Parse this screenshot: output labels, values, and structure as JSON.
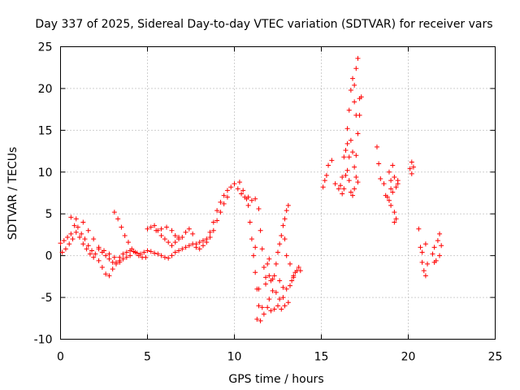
{
  "chart_data": {
    "type": "scatter",
    "title": "Day 337 of 2025, Sidereal Day-to-day VTEC variation (SDTVAR) for receiver vars",
    "xlabel": "GPS time / hours",
    "ylabel": "SDTVAR / TECUs",
    "xlim": [
      0,
      25
    ],
    "ylim": [
      -10,
      25
    ],
    "xticks": [
      0,
      5,
      10,
      15,
      20,
      25
    ],
    "yticks": [
      -10,
      -5,
      0,
      5,
      10,
      15,
      20,
      25
    ],
    "xtick_labels": [
      "0",
      "5",
      "10",
      "15",
      "20",
      "25"
    ],
    "ytick_labels": [
      "-10",
      "-5",
      "0",
      "5",
      "10",
      "15",
      "20",
      "25"
    ],
    "grid": true,
    "marker": "+",
    "series": [
      {
        "name": "SDTVAR",
        "color": "#ff0000",
        "points": [
          [
            0.0,
            1.5
          ],
          [
            0.2,
            1.8
          ],
          [
            0.4,
            2.2
          ],
          [
            0.6,
            2.6
          ],
          [
            0.8,
            3.6
          ],
          [
            1.0,
            3.4
          ],
          [
            1.2,
            2.6
          ],
          [
            1.4,
            2.0
          ],
          [
            1.6,
            1.2
          ],
          [
            1.8,
            0.6
          ],
          [
            2.0,
            0.2
          ],
          [
            2.2,
            -0.6
          ],
          [
            2.4,
            -1.4
          ],
          [
            2.6,
            -2.2
          ],
          [
            2.8,
            -2.4
          ],
          [
            3.0,
            -1.6
          ],
          [
            3.2,
            -0.8
          ],
          [
            3.4,
            -0.2
          ],
          [
            3.6,
            0.2
          ],
          [
            3.8,
            0.4
          ],
          [
            4.0,
            0.6
          ],
          [
            4.2,
            0.5
          ],
          [
            4.4,
            0.3
          ],
          [
            4.6,
            0.2
          ],
          [
            4.8,
            0.4
          ],
          [
            5.0,
            0.6
          ],
          [
            5.2,
            0.5
          ],
          [
            5.4,
            0.3
          ],
          [
            5.6,
            0.2
          ],
          [
            5.8,
            0.0
          ],
          [
            6.0,
            -0.2
          ],
          [
            6.2,
            -0.3
          ],
          [
            6.4,
            0.0
          ],
          [
            6.6,
            0.4
          ],
          [
            6.8,
            0.6
          ],
          [
            7.0,
            0.8
          ],
          [
            7.2,
            1.0
          ],
          [
            7.4,
            1.2
          ],
          [
            7.6,
            1.4
          ],
          [
            7.8,
            1.4
          ],
          [
            8.0,
            1.6
          ],
          [
            8.2,
            1.8
          ],
          [
            8.4,
            2.0
          ],
          [
            8.6,
            2.8
          ],
          [
            8.8,
            4.0
          ],
          [
            9.0,
            5.4
          ],
          [
            9.2,
            6.4
          ],
          [
            9.4,
            7.2
          ],
          [
            9.6,
            7.8
          ],
          [
            9.8,
            8.2
          ],
          [
            10.0,
            8.6
          ],
          [
            10.2,
            8.0
          ],
          [
            10.4,
            7.4
          ],
          [
            10.6,
            7.0
          ],
          [
            10.8,
            7.0
          ],
          [
            11.0,
            6.6
          ],
          [
            11.2,
            1.0
          ],
          [
            11.4,
            -4.0
          ],
          [
            11.6,
            -6.2
          ],
          [
            11.8,
            -3.4
          ],
          [
            12.0,
            -2.4
          ],
          [
            12.2,
            -2.8
          ],
          [
            12.4,
            -4.4
          ],
          [
            12.6,
            -5.2
          ],
          [
            12.8,
            -5.0
          ],
          [
            13.0,
            -4.0
          ],
          [
            13.2,
            -3.6
          ],
          [
            13.4,
            -2.6
          ],
          [
            13.6,
            -1.8
          ],
          [
            0.1,
            0.4
          ],
          [
            0.3,
            0.8
          ],
          [
            0.5,
            1.4
          ],
          [
            0.7,
            2.0
          ],
          [
            0.9,
            2.8
          ],
          [
            1.1,
            2.2
          ],
          [
            1.3,
            1.4
          ],
          [
            1.5,
            0.8
          ],
          [
            1.7,
            0.2
          ],
          [
            1.9,
            -0.2
          ],
          [
            0.6,
            4.6
          ],
          [
            0.9,
            4.4
          ],
          [
            1.3,
            4.0
          ],
          [
            1.6,
            3.0
          ],
          [
            1.9,
            2.0
          ],
          [
            2.2,
            1.0
          ],
          [
            2.5,
            0.6
          ],
          [
            2.8,
            0.2
          ],
          [
            3.1,
            -0.2
          ],
          [
            3.4,
            -0.6
          ],
          [
            3.1,
            5.2
          ],
          [
            3.3,
            4.4
          ],
          [
            3.5,
            3.4
          ],
          [
            3.7,
            2.4
          ],
          [
            3.9,
            1.6
          ],
          [
            4.1,
            0.8
          ],
          [
            4.3,
            0.4
          ],
          [
            4.5,
            0.0
          ],
          [
            4.7,
            -0.2
          ],
          [
            4.9,
            -0.2
          ],
          [
            5.0,
            3.2
          ],
          [
            5.2,
            3.4
          ],
          [
            5.4,
            3.6
          ],
          [
            5.6,
            3.0
          ],
          [
            5.8,
            2.4
          ],
          [
            6.0,
            2.0
          ],
          [
            6.2,
            1.6
          ],
          [
            6.4,
            1.2
          ],
          [
            6.6,
            1.6
          ],
          [
            6.8,
            2.2
          ],
          [
            5.5,
            3.0
          ],
          [
            5.8,
            3.2
          ],
          [
            6.1,
            3.4
          ],
          [
            6.4,
            3.0
          ],
          [
            6.6,
            2.4
          ],
          [
            6.8,
            2.0
          ],
          [
            7.0,
            2.2
          ],
          [
            7.2,
            2.8
          ],
          [
            7.4,
            3.2
          ],
          [
            7.6,
            2.6
          ],
          [
            2.2,
            0.8
          ],
          [
            2.4,
            0.4
          ],
          [
            2.6,
            0.0
          ],
          [
            2.8,
            -0.4
          ],
          [
            3.0,
            -0.8
          ],
          [
            3.2,
            -1.0
          ],
          [
            3.4,
            -0.8
          ],
          [
            3.6,
            -0.4
          ],
          [
            3.8,
            -0.2
          ],
          [
            4.0,
            0.0
          ],
          [
            7.8,
            1.0
          ],
          [
            8.0,
            0.8
          ],
          [
            8.2,
            1.2
          ],
          [
            8.4,
            1.6
          ],
          [
            8.6,
            2.2
          ],
          [
            8.8,
            3.0
          ],
          [
            9.0,
            4.2
          ],
          [
            9.2,
            5.2
          ],
          [
            9.4,
            6.2
          ],
          [
            9.6,
            7.0
          ],
          [
            10.3,
            8.8
          ],
          [
            10.5,
            7.8
          ],
          [
            10.7,
            6.8
          ],
          [
            10.8,
            6.0
          ],
          [
            10.9,
            4.0
          ],
          [
            11.0,
            2.0
          ],
          [
            11.1,
            0.0
          ],
          [
            11.2,
            -2.0
          ],
          [
            11.3,
            -4.0
          ],
          [
            11.4,
            -6.0
          ],
          [
            11.3,
            -7.6
          ],
          [
            11.5,
            -7.8
          ],
          [
            11.7,
            -7.0
          ],
          [
            11.9,
            -6.2
          ],
          [
            12.1,
            -6.6
          ],
          [
            12.3,
            -6.4
          ],
          [
            12.5,
            -6.0
          ],
          [
            12.7,
            -6.4
          ],
          [
            12.9,
            -6.0
          ],
          [
            13.1,
            -5.6
          ],
          [
            11.2,
            6.8
          ],
          [
            11.4,
            5.6
          ],
          [
            11.5,
            3.0
          ],
          [
            11.6,
            0.8
          ],
          [
            11.7,
            -1.4
          ],
          [
            11.8,
            -2.6
          ],
          [
            11.9,
            -1.0
          ],
          [
            12.0,
            -0.4
          ],
          [
            12.1,
            -3.0
          ],
          [
            12.2,
            -4.2
          ],
          [
            12.4,
            -1.0
          ],
          [
            12.5,
            0.4
          ],
          [
            12.6,
            1.4
          ],
          [
            12.7,
            2.4
          ],
          [
            12.8,
            3.6
          ],
          [
            12.9,
            4.4
          ],
          [
            13.0,
            5.4
          ],
          [
            13.1,
            6.0
          ],
          [
            12.3,
            -2.4
          ],
          [
            12.6,
            -3.0
          ],
          [
            13.3,
            -3.0
          ],
          [
            13.5,
            -2.0
          ],
          [
            13.7,
            -1.4
          ],
          [
            13.8,
            -1.8
          ],
          [
            12.9,
            2.0
          ],
          [
            13.0,
            0.0
          ],
          [
            13.2,
            -1.0
          ],
          [
            13.4,
            -2.4
          ],
          [
            12.8,
            -3.8
          ],
          [
            12.0,
            -5.2
          ],
          [
            15.1,
            8.2
          ],
          [
            15.2,
            9.0
          ],
          [
            15.3,
            9.6
          ],
          [
            15.4,
            10.8
          ],
          [
            15.6,
            11.4
          ],
          [
            15.8,
            8.6
          ],
          [
            16.0,
            8.0
          ],
          [
            16.1,
            8.4
          ],
          [
            16.2,
            9.4
          ],
          [
            16.3,
            11.8
          ],
          [
            16.4,
            12.6
          ],
          [
            16.5,
            13.4
          ],
          [
            16.6,
            9.0
          ],
          [
            16.7,
            7.6
          ],
          [
            16.8,
            7.2
          ],
          [
            16.9,
            8.0
          ],
          [
            17.0,
            12.0
          ],
          [
            17.1,
            14.6
          ],
          [
            17.2,
            18.8
          ],
          [
            17.3,
            19.0
          ],
          [
            16.5,
            15.2
          ],
          [
            16.6,
            17.4
          ],
          [
            16.7,
            19.8
          ],
          [
            16.8,
            21.2
          ],
          [
            16.9,
            20.4
          ],
          [
            17.0,
            22.4
          ],
          [
            17.1,
            23.6
          ],
          [
            16.9,
            18.4
          ],
          [
            17.0,
            16.8
          ],
          [
            17.2,
            16.8
          ],
          [
            16.4,
            9.6
          ],
          [
            16.5,
            10.2
          ],
          [
            16.6,
            11.8
          ],
          [
            16.7,
            13.8
          ],
          [
            16.8,
            12.4
          ],
          [
            16.9,
            10.6
          ],
          [
            17.0,
            9.4
          ],
          [
            17.1,
            8.8
          ],
          [
            16.3,
            8.0
          ],
          [
            16.2,
            7.4
          ],
          [
            18.2,
            13.0
          ],
          [
            18.3,
            11.0
          ],
          [
            18.4,
            9.2
          ],
          [
            18.6,
            8.6
          ],
          [
            18.8,
            7.0
          ],
          [
            18.9,
            6.6
          ],
          [
            19.0,
            9.0
          ],
          [
            19.1,
            10.8
          ],
          [
            19.2,
            9.4
          ],
          [
            19.3,
            8.2
          ],
          [
            19.1,
            7.6
          ],
          [
            19.2,
            5.2
          ],
          [
            19.3,
            4.4
          ],
          [
            19.4,
            8.6
          ],
          [
            19.0,
            8.0
          ],
          [
            18.9,
            10.0
          ],
          [
            19.2,
            4.0
          ],
          [
            19.4,
            9.0
          ],
          [
            18.7,
            7.2
          ],
          [
            19.0,
            6.0
          ],
          [
            20.1,
            10.4
          ],
          [
            20.2,
            11.2
          ],
          [
            20.3,
            10.6
          ],
          [
            20.2,
            9.8
          ],
          [
            20.6,
            3.2
          ],
          [
            20.7,
            1.0
          ],
          [
            20.8,
            -0.8
          ],
          [
            20.9,
            -1.8
          ],
          [
            21.0,
            -2.4
          ],
          [
            21.1,
            -1.0
          ],
          [
            20.8,
            0.4
          ],
          [
            21.0,
            1.4
          ],
          [
            21.4,
            0.2
          ],
          [
            21.5,
            1.0
          ],
          [
            21.6,
            -0.6
          ],
          [
            21.7,
            1.8
          ],
          [
            21.8,
            2.6
          ],
          [
            21.9,
            1.2
          ],
          [
            21.8,
            0.0
          ],
          [
            21.5,
            -0.8
          ]
        ]
      }
    ]
  }
}
